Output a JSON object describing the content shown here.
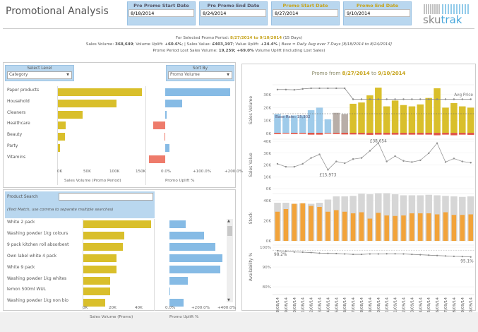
{
  "header": {
    "title": "Promotional Analysis",
    "date_fields": [
      {
        "label": "Pre Promo Start Date",
        "value": "8/18/2014",
        "promo": false
      },
      {
        "label": "Pre Promo End Date",
        "value": "8/24/2014",
        "promo": false
      },
      {
        "label": "Promo Start Date",
        "value": "8/27/2014",
        "promo": true
      },
      {
        "label": "Promo End Date",
        "value": "9/10/2014",
        "promo": true
      }
    ],
    "logo": "skutrak"
  },
  "summary": {
    "line1_prefix": "For Selected Promo Period: ",
    "promo_start": "8/27/2014",
    "to": " to ",
    "promo_end": "9/10/2014",
    "line1_suffix": " (15 Days)",
    "sales_volume_label": "Sales Volume: ",
    "sales_volume": "368,649",
    "volume_uplift_label": "; Volume Uplift: ",
    "volume_uplift": "+60.6%",
    "sales_value_label": "; | Sales Value: ",
    "sales_value": "£403,197",
    "value_uplift_label": "; Value Uplift: ",
    "value_uplift": "+24.4%",
    "base_note": " | Base = Daily Avg over 7 Days [8/18/2014 to 8/24/2014]",
    "lost_label": "Promo Period Lost Sales Volume: ",
    "lost_volume": "19,259",
    "lost_uplift": "; +69.0%",
    "lost_suffix": " Volume Uplift (Including Lost Sales)"
  },
  "category_panel": {
    "select_level_label": "Select Level",
    "select_level_value": "Category",
    "sort_by_label": "Sort By",
    "sort_by_value": "Promo Volume",
    "volume_axis_title": "Sales Volume (Promo Period)",
    "uplift_axis_title": "Promo Uplift %",
    "volume_ticks": [
      "0K",
      "50K",
      "100K",
      "150K"
    ],
    "uplift_ticks": [
      "0.0%",
      "+100.0%",
      "+200.0%"
    ],
    "rows": [
      {
        "name": "Paper products",
        "volume": 165000,
        "uplift": 200
      },
      {
        "name": "Household",
        "volume": 116000,
        "uplift": 52
      },
      {
        "name": "Cleaners",
        "volume": 50000,
        "uplift": 4
      },
      {
        "name": "Healthcare",
        "volume": 17000,
        "uplift": -38
      },
      {
        "name": "Beauty",
        "volume": 15000,
        "uplift": -3
      },
      {
        "name": "Party",
        "volume": 5000,
        "uplift": 14
      },
      {
        "name": "Vitamins",
        "volume": 0,
        "uplift": -50
      }
    ]
  },
  "product_panel": {
    "search_label": "Product Search",
    "search_value": "",
    "search_hint": "(Text Match, use comma to separate multiple searches)",
    "volume_axis_title": "Sales Volume (Promo)",
    "uplift_axis_title": "Promo Uplift %",
    "volume_ticks": [
      "0K",
      "20K",
      "40K"
    ],
    "uplift_ticks": [
      "0.0%",
      "+200.0%",
      "+400.0%"
    ],
    "rows": [
      {
        "name": "White 2 pack",
        "volume": 51000,
        "uplift": 125
      },
      {
        "name": "Washing powder 1kg colours",
        "volume": 31000,
        "uplift": 260
      },
      {
        "name": "9 pack kitchen roll absorbent",
        "volume": 30000,
        "uplift": 345
      },
      {
        "name": "Own label white 4 pack",
        "volume": 25500,
        "uplift": 402
      },
      {
        "name": "White 9 pack",
        "volume": 25500,
        "uplift": 385
      },
      {
        "name": "Washing powder 1kg whites",
        "volume": 20500,
        "uplift": 140
      },
      {
        "name": "lemon 500ml WUL",
        "volume": 20500,
        "uplift": 5
      },
      {
        "name": "Washing powder 1kg non bio",
        "volume": 17000,
        "uplift": 105
      }
    ]
  },
  "chart_data": {
    "type": "bar",
    "title_prefix": "Promo from ",
    "title_start": "8/27/2014",
    "title_to": " to ",
    "title_end": "9/10/2014",
    "colors": {
      "pre_promo": "#9fcbea",
      "gap": "#b8aea8",
      "promo": "#d9bf2b",
      "lost": "#e0574a",
      "stock": "#d6d6d6",
      "stock_used": "#f2a33a",
      "line": "#888888"
    },
    "dates": [
      "18/08/14",
      "19/08/14",
      "20/08/14",
      "21/08/14",
      "22/08/14",
      "23/08/14",
      "24/08/14",
      "25/08/14",
      "26/08/14",
      "27/08/14",
      "28/08/14",
      "29/08/14",
      "30/08/14",
      "31/08/14",
      "01/09/14",
      "02/09/14",
      "03/09/14",
      "04/09/14",
      "05/09/14",
      "06/09/14",
      "07/09/14",
      "08/09/14",
      "09/09/14",
      "10/09/14"
    ],
    "period": [
      "pre",
      "pre",
      "pre",
      "pre",
      "pre",
      "pre",
      "pre",
      "gap",
      "gap",
      "promo",
      "promo",
      "promo",
      "promo",
      "promo",
      "promo",
      "promo",
      "promo",
      "promo",
      "promo",
      "promo",
      "promo",
      "promo",
      "promo",
      "promo"
    ],
    "sales_volume": {
      "ylabel": "Sales Volume",
      "ticks": [
        "0K",
        "10K",
        "20K",
        "30K"
      ],
      "ylim": [
        0,
        36000
      ],
      "values": [
        15000,
        14000,
        14000,
        14000,
        18000,
        20000,
        11000,
        16000,
        15000,
        23000,
        24000,
        29500,
        35500,
        21000,
        25500,
        22000,
        21000,
        22500,
        27500,
        35000,
        20000,
        23500,
        21000,
        20000
      ],
      "lost": [
        600,
        400,
        600,
        500,
        900,
        900,
        400,
        600,
        800,
        800,
        800,
        1000,
        900,
        900,
        900,
        900,
        900,
        900,
        900,
        1200,
        900,
        1200,
        900,
        1000
      ],
      "base_rate_label": "Base Rate: 15,302",
      "base_rate": 15302,
      "avg_price_label": "Avg Price",
      "avg_price": [
        34000,
        34000,
        33800,
        34500,
        35000,
        35000,
        35000,
        35000,
        35000,
        26500,
        26500,
        26500,
        26500,
        26500,
        26500,
        26500,
        26500,
        26500,
        26500,
        26500,
        26500,
        26500,
        26500,
        26500
      ]
    },
    "sales_value": {
      "ylabel": "Sales Value",
      "ticks": [
        "0K",
        "10K",
        "20K",
        "30K",
        "40K"
      ],
      "ylim": [
        0,
        40000
      ],
      "values": [
        21000,
        18500,
        18500,
        21000,
        26000,
        29000,
        15973,
        23000,
        21500,
        25000,
        26000,
        32000,
        38654,
        23000,
        27500,
        23500,
        22500,
        24000,
        30000,
        38500,
        22500,
        25500,
        23000,
        22000
      ],
      "min_label": "£15,973",
      "max_label": "£38,654"
    },
    "stock": {
      "ylabel": "Stock",
      "ticks": [
        "0K",
        "20K",
        "40K"
      ],
      "ylim": [
        0,
        45000
      ],
      "total": [
        36000,
        36000,
        35000,
        35500,
        35000,
        36000,
        39000,
        42000,
        42000,
        42500,
        44500,
        44000,
        45000,
        45000,
        44000,
        43000,
        43000,
        43000,
        43500,
        43000,
        42500,
        42000,
        41500,
        42000
      ],
      "available": [
        27500,
        30000,
        35000,
        35500,
        33000,
        32000,
        27500,
        29000,
        27500,
        26000,
        27000,
        21000,
        26500,
        24000,
        23500,
        24000,
        26000,
        26000,
        26000,
        25000,
        27000,
        24500,
        24500,
        25000
      ]
    },
    "availability": {
      "ylabel": "Availability %",
      "ticks": [
        "80%",
        "90%",
        "100%"
      ],
      "ylim": [
        78,
        100
      ],
      "values": [
        98.2,
        98.0,
        97.6,
        97.5,
        97.3,
        97.0,
        96.9,
        96.8,
        96.6,
        96.4,
        96.4,
        96.6,
        96.6,
        96.7,
        96.7,
        96.6,
        96.4,
        96.2,
        96.0,
        95.8,
        95.6,
        95.4,
        95.3,
        95.1
      ],
      "start_label": "98.2%",
      "end_label": "95.1%"
    }
  }
}
